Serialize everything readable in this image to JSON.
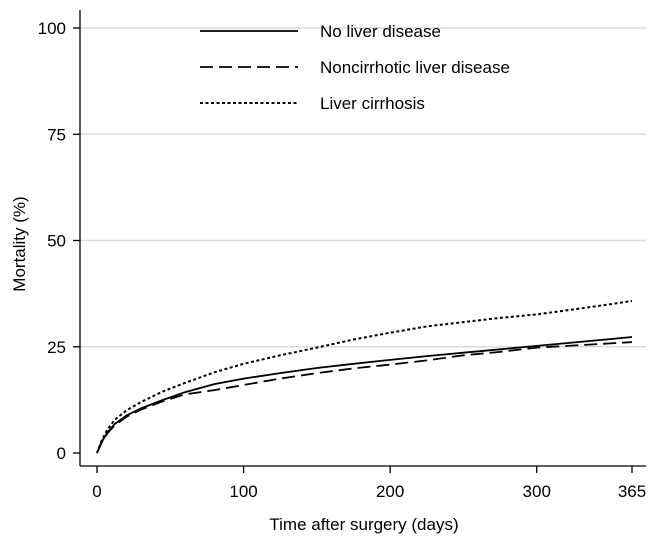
{
  "chart_data": {
    "type": "line",
    "title": "",
    "xlabel": "Time after surgery (days)",
    "ylabel": "Mortality (%)",
    "xlim": [
      0,
      365
    ],
    "ylim": [
      0,
      100
    ],
    "x_ticks": [
      0,
      100,
      200,
      300,
      365
    ],
    "y_ticks": [
      0,
      25,
      50,
      75,
      100
    ],
    "grid": "horizontal",
    "legend_position": "top",
    "series": [
      {
        "name": "No liver disease",
        "style": "solid",
        "x": [
          0,
          3,
          7,
          12,
          20,
          30,
          45,
          60,
          80,
          100,
          125,
          150,
          175,
          200,
          225,
          250,
          275,
          300,
          325,
          350,
          365
        ],
        "y": [
          0,
          2.5,
          4.8,
          6.8,
          8.8,
          10.5,
          12.5,
          14.3,
          16.2,
          17.5,
          18.8,
          20.0,
          21.0,
          21.9,
          22.8,
          23.6,
          24.4,
          25.2,
          26.0,
          26.8,
          27.3
        ]
      },
      {
        "name": "Noncirrhotic liver disease",
        "style": "dashed",
        "x": [
          0,
          3,
          7,
          12,
          20,
          30,
          45,
          60,
          80,
          100,
          125,
          150,
          175,
          200,
          225,
          250,
          275,
          300,
          325,
          350,
          365
        ],
        "y": [
          0,
          2.3,
          4.6,
          6.5,
          8.5,
          10.2,
          12.2,
          13.8,
          14.8,
          16.0,
          17.5,
          18.8,
          19.9,
          20.8,
          21.8,
          23.0,
          23.8,
          24.8,
          25.3,
          25.8,
          26.1
        ]
      },
      {
        "name": "Liver cirrhosis",
        "style": "dotted",
        "x": [
          0,
          3,
          7,
          12,
          20,
          30,
          45,
          60,
          80,
          100,
          125,
          150,
          175,
          200,
          225,
          250,
          275,
          300,
          325,
          350,
          365
        ],
        "y": [
          0,
          2.8,
          5.5,
          7.8,
          10.0,
          12.0,
          14.5,
          16.5,
          19.0,
          21.0,
          23.0,
          24.8,
          26.7,
          28.3,
          29.8,
          30.8,
          31.8,
          32.6,
          33.8,
          35.0,
          35.8
        ]
      }
    ]
  }
}
